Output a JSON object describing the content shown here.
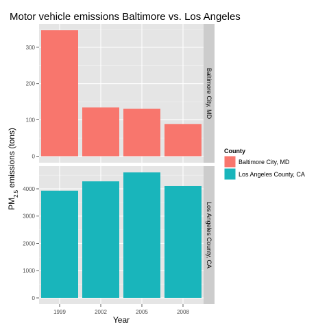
{
  "chart_data": {
    "type": "bar",
    "title": "Motor vehicle emissions Baltimore vs. Los Angeles",
    "xlabel": "Year",
    "ylabel_main": "PM",
    "ylabel_sub": "2.5",
    "ylabel_rest": " emissions (tons)",
    "categories": [
      "1999",
      "2002",
      "2005",
      "2008"
    ],
    "legend": {
      "title": "County",
      "position": "right"
    },
    "colors": {
      "panel_bg": "#e5e5e5",
      "grid": "#ffffff",
      "strip_bg": "#cccccc",
      "axis_text": "#4d4d4d"
    },
    "facets": [
      {
        "strip": "Baltimore City, MD",
        "name": "Baltimore City, MD",
        "color": "#f8766d",
        "values": [
          346.82,
          134.31,
          130.43,
          88.28
        ],
        "ylim": [
          -18,
          364
        ],
        "yticks": [
          0,
          100,
          200,
          300
        ]
      },
      {
        "strip": "Los Angeles County, CA",
        "name": "Los Angeles County, CA",
        "color": "#19b5bb",
        "values": [
          3931.12,
          4274.03,
          4601.41,
          4101.32
        ],
        "ylim": [
          -228,
          4831
        ],
        "yticks": [
          0,
          1000,
          2000,
          3000,
          4000
        ]
      }
    ]
  }
}
